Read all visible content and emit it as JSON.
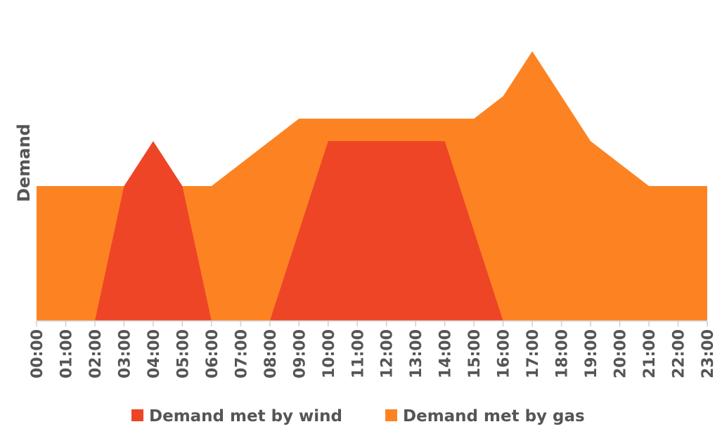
{
  "chart_data": {
    "type": "area",
    "title": "",
    "xlabel": "",
    "ylabel": "Demand",
    "ylim": [
      0,
      12
    ],
    "grid": false,
    "legend_position": "bottom",
    "categories": [
      "00:00",
      "01:00",
      "02:00",
      "03:00",
      "04:00",
      "05:00",
      "06:00",
      "07:00",
      "08:00",
      "09:00",
      "10:00",
      "11:00",
      "12:00",
      "13:00",
      "14:00",
      "15:00",
      "16:00",
      "17:00",
      "18:00",
      "19:00",
      "20:00",
      "21:00",
      "22:00",
      "23:00"
    ],
    "series": [
      {
        "name": "Demand met by wind",
        "color": "#ee4527",
        "values": [
          0,
          0,
          0,
          6,
          8,
          6,
          0,
          0,
          0,
          4,
          8,
          8,
          8,
          8,
          8,
          4,
          0,
          0,
          0,
          0,
          0,
          0,
          0,
          0
        ]
      },
      {
        "name": "Demand met by gas",
        "color": "#fd8322",
        "values": [
          6,
          6,
          6,
          6,
          6,
          6,
          6,
          7,
          8,
          9,
          9,
          9,
          9,
          9,
          9,
          9,
          10,
          12,
          10,
          8,
          7,
          6,
          6,
          6
        ]
      }
    ]
  }
}
